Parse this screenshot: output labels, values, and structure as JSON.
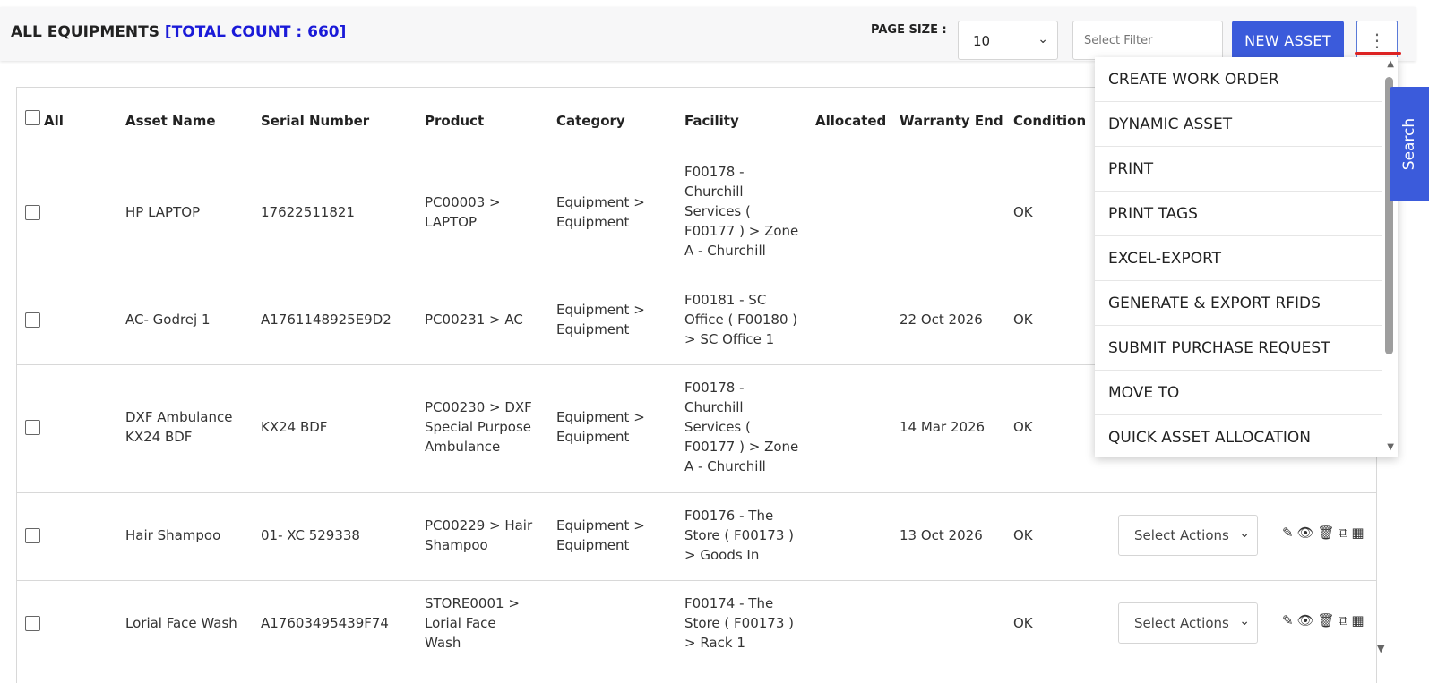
{
  "header": {
    "title": "ALL EQUIPMENTS",
    "count_label": "[TOTAL COUNT : 660]",
    "page_size_label": "PAGE SIZE :",
    "page_size_value": "10",
    "filter_placeholder": "Select Filter",
    "new_asset_label": "NEW ASSET",
    "more_icon": "⋮"
  },
  "table": {
    "columns": [
      "All",
      "Asset Name",
      "Serial Number",
      "Product",
      "Category",
      "Facility",
      "Allocated",
      "Warranty End",
      "Condition"
    ],
    "rows": [
      {
        "asset_name": "HP LAPTOP",
        "serial": "17622511821",
        "product": "PC00003 > LAPTOP",
        "category": "Equipment > Equipment",
        "facility": "F00178 - Churchill Services ( F00177 ) > Zone A - Churchill",
        "allocated": "",
        "warranty_end": "",
        "condition": "OK",
        "action": ""
      },
      {
        "asset_name": "AC- Godrej 1",
        "serial": "A1761148925E9D2",
        "product": "PC00231 > AC",
        "category": "Equipment > Equipment",
        "facility": "F00181 - SC Office ( F00180 ) > SC Office 1",
        "allocated": "",
        "warranty_end": "22 Oct 2026",
        "condition": "OK",
        "action": ""
      },
      {
        "asset_name": "DXF Ambulance KX24 BDF",
        "serial": "KX24 BDF",
        "product": "PC00230 > DXF Special Purpose Ambulance",
        "category": "Equipment > Equipment",
        "facility": "F00178 - Churchill Services ( F00177 ) > Zone A - Churchill",
        "allocated": "",
        "warranty_end": "14 Mar 2026",
        "condition": "OK",
        "action": ""
      },
      {
        "asset_name": "Hair Shampoo",
        "serial": "01- XC 529338",
        "product": "PC00229 > Hair Shampoo",
        "category": "Equipment > Equipment",
        "facility": "F00176 - The Store ( F00173 ) > Goods In",
        "allocated": "",
        "warranty_end": "13 Oct 2026",
        "condition": "OK",
        "action": "Select Actions"
      },
      {
        "asset_name": "Lorial Face Wash",
        "serial": "A17603495439F74",
        "product": "STORE0001 > Lorial Face Wash",
        "category": "",
        "facility": "F00174 - The Store ( F00173 ) > Rack 1",
        "allocated": "",
        "warranty_end": "",
        "condition": "OK",
        "action": "Select Actions"
      }
    ],
    "row_icons": "✎👁🗑⧉▦"
  },
  "dropdown": {
    "items": [
      "CREATE WORK ORDER",
      "DYNAMIC ASSET",
      "PRINT",
      "PRINT TAGS",
      "EXCEL-EXPORT",
      "GENERATE & EXPORT RFIDS",
      "SUBMIT PURCHASE REQUEST",
      "MOVE TO",
      "QUICK ASSET ALLOCATION"
    ]
  },
  "search_tab": "Search",
  "colors": {
    "accent": "#3b5bdb",
    "count": "#1a1ad8",
    "underline": "#e02424"
  }
}
